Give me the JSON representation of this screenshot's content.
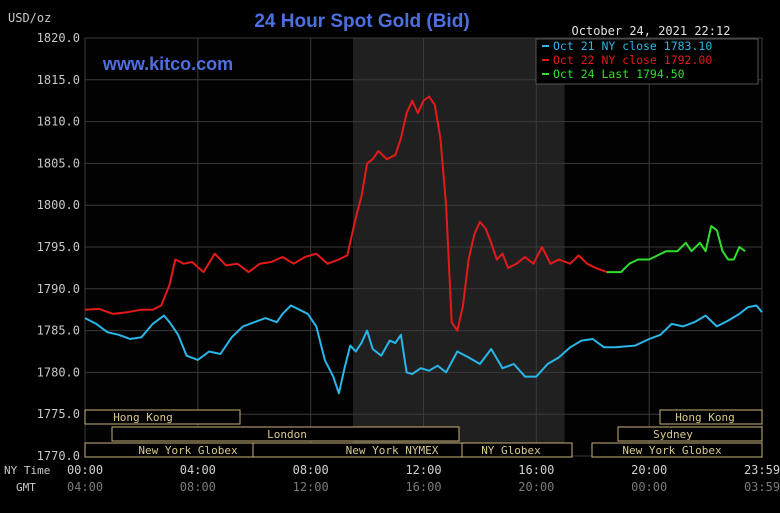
{
  "header": {
    "y_unit": "USD/oz",
    "title": "24 Hour Spot Gold (Bid)",
    "website": "www.kitco.com",
    "datetime": "October 24, 2021 22:12"
  },
  "legend": [
    {
      "label": "Oct 21 NY close 1783.10",
      "color": "#29b6e8"
    },
    {
      "label": "Oct 22 NY close 1792.00",
      "color": "#e41a1a"
    },
    {
      "label": "Oct 24 Last 1794.50",
      "color": "#2ee02e"
    }
  ],
  "x_axis": {
    "row_label_ny": "NY Time",
    "row_label_gmt": "GMT",
    "ny_ticks": [
      "00:00",
      "04:00",
      "08:00",
      "12:00",
      "16:00",
      "20:00",
      "23:59"
    ],
    "gmt_ticks": [
      "04:00",
      "08:00",
      "12:00",
      "16:00",
      "20:00",
      "00:00",
      "03:59"
    ]
  },
  "sessions": {
    "hong_kong_left": "Hong Kong",
    "london": "London",
    "ny_globex_left": "New York Globex",
    "ny_nymex": "New York NYMEX",
    "ny_globex_mid": "NY Globex",
    "hong_kong_right": "Hong Kong",
    "sydney": "Sydney",
    "ny_globex_right": "New York Globex"
  },
  "chart_data": {
    "type": "line",
    "title": "24 Hour Spot Gold (Bid)",
    "ylabel": "USD/oz",
    "xlabel": "NY Time",
    "x_unit": "hours (NY time)",
    "xlim": [
      0,
      24
    ],
    "ylim": [
      1770,
      1820
    ],
    "yticks": [
      "1770.0",
      "1775.0",
      "1780.0",
      "1785.0",
      "1790.0",
      "1795.0",
      "1800.0",
      "1805.0",
      "1810.0",
      "1815.0",
      "1820.0"
    ],
    "grid": true,
    "legend_position": "top-right",
    "shaded_region_hours": [
      9.5,
      17.0
    ],
    "series": [
      {
        "name": "Oct 21 NY close 1783.10",
        "color": "#29b6e8",
        "points": [
          [
            0.0,
            1786.5
          ],
          [
            0.4,
            1785.8
          ],
          [
            0.8,
            1784.8
          ],
          [
            1.2,
            1784.5
          ],
          [
            1.6,
            1784.0
          ],
          [
            2.0,
            1784.2
          ],
          [
            2.4,
            1785.8
          ],
          [
            2.8,
            1786.8
          ],
          [
            3.0,
            1786.0
          ],
          [
            3.3,
            1784.5
          ],
          [
            3.6,
            1782.0
          ],
          [
            4.0,
            1781.5
          ],
          [
            4.4,
            1782.5
          ],
          [
            4.8,
            1782.2
          ],
          [
            5.2,
            1784.2
          ],
          [
            5.6,
            1785.5
          ],
          [
            6.0,
            1786.0
          ],
          [
            6.4,
            1786.5
          ],
          [
            6.8,
            1786.0
          ],
          [
            7.0,
            1787.0
          ],
          [
            7.3,
            1788.0
          ],
          [
            7.6,
            1787.5
          ],
          [
            7.9,
            1787.0
          ],
          [
            8.2,
            1785.5
          ],
          [
            8.5,
            1781.5
          ],
          [
            8.8,
            1779.5
          ],
          [
            9.0,
            1777.5
          ],
          [
            9.2,
            1780.5
          ],
          [
            9.4,
            1783.2
          ],
          [
            9.6,
            1782.5
          ],
          [
            9.8,
            1783.5
          ],
          [
            10.0,
            1785.0
          ],
          [
            10.2,
            1782.8
          ],
          [
            10.5,
            1782.0
          ],
          [
            10.8,
            1783.8
          ],
          [
            11.0,
            1783.5
          ],
          [
            11.2,
            1784.5
          ],
          [
            11.4,
            1780.0
          ],
          [
            11.6,
            1779.8
          ],
          [
            11.9,
            1780.5
          ],
          [
            12.2,
            1780.2
          ],
          [
            12.5,
            1780.8
          ],
          [
            12.8,
            1780.0
          ],
          [
            13.2,
            1782.5
          ],
          [
            13.6,
            1781.8
          ],
          [
            14.0,
            1781.0
          ],
          [
            14.4,
            1782.8
          ],
          [
            14.8,
            1780.5
          ],
          [
            15.2,
            1781.0
          ],
          [
            15.6,
            1779.5
          ],
          [
            16.0,
            1779.5
          ],
          [
            16.4,
            1781.0
          ],
          [
            16.8,
            1781.8
          ],
          [
            17.2,
            1783.0
          ],
          [
            17.6,
            1783.8
          ],
          [
            18.0,
            1784.0
          ],
          [
            18.4,
            1783.0
          ],
          [
            18.8,
            1783.0
          ],
          [
            19.5,
            1783.2
          ],
          [
            20.0,
            1784.0
          ],
          [
            20.4,
            1784.5
          ],
          [
            20.8,
            1785.8
          ],
          [
            21.2,
            1785.5
          ],
          [
            21.6,
            1786.0
          ],
          [
            22.0,
            1786.8
          ],
          [
            22.4,
            1785.5
          ],
          [
            22.8,
            1786.2
          ],
          [
            23.2,
            1787.0
          ],
          [
            23.5,
            1787.8
          ],
          [
            23.8,
            1788.0
          ],
          [
            24.0,
            1787.2
          ]
        ]
      },
      {
        "name": "Oct 22 NY close 1792.00",
        "color": "#e41a1a",
        "points": [
          [
            0.0,
            1787.5
          ],
          [
            0.5,
            1787.6
          ],
          [
            1.0,
            1787.0
          ],
          [
            1.5,
            1787.2
          ],
          [
            2.0,
            1787.5
          ],
          [
            2.4,
            1787.5
          ],
          [
            2.7,
            1788.0
          ],
          [
            3.0,
            1790.5
          ],
          [
            3.2,
            1793.5
          ],
          [
            3.5,
            1793.0
          ],
          [
            3.8,
            1793.2
          ],
          [
            4.2,
            1792.0
          ],
          [
            4.6,
            1794.2
          ],
          [
            5.0,
            1792.8
          ],
          [
            5.4,
            1793.0
          ],
          [
            5.8,
            1792.0
          ],
          [
            6.2,
            1793.0
          ],
          [
            6.6,
            1793.2
          ],
          [
            7.0,
            1793.8
          ],
          [
            7.4,
            1793.0
          ],
          [
            7.8,
            1793.8
          ],
          [
            8.2,
            1794.2
          ],
          [
            8.6,
            1793.0
          ],
          [
            9.0,
            1793.5
          ],
          [
            9.3,
            1794.0
          ],
          [
            9.6,
            1798.5
          ],
          [
            9.8,
            1801.0
          ],
          [
            10.0,
            1805.0
          ],
          [
            10.2,
            1805.5
          ],
          [
            10.4,
            1806.5
          ],
          [
            10.7,
            1805.5
          ],
          [
            11.0,
            1806.0
          ],
          [
            11.2,
            1808.0
          ],
          [
            11.4,
            1811.0
          ],
          [
            11.6,
            1812.5
          ],
          [
            11.8,
            1811.0
          ],
          [
            12.0,
            1812.5
          ],
          [
            12.2,
            1813.0
          ],
          [
            12.4,
            1812.0
          ],
          [
            12.6,
            1808.0
          ],
          [
            12.8,
            1800.0
          ],
          [
            13.0,
            1786.0
          ],
          [
            13.2,
            1785.0
          ],
          [
            13.4,
            1788.0
          ],
          [
            13.6,
            1793.5
          ],
          [
            13.8,
            1796.5
          ],
          [
            14.0,
            1798.0
          ],
          [
            14.2,
            1797.2
          ],
          [
            14.4,
            1795.5
          ],
          [
            14.6,
            1793.5
          ],
          [
            14.8,
            1794.2
          ],
          [
            15.0,
            1792.5
          ],
          [
            15.3,
            1793.0
          ],
          [
            15.6,
            1793.8
          ],
          [
            15.9,
            1793.0
          ],
          [
            16.2,
            1795.0
          ],
          [
            16.5,
            1793.0
          ],
          [
            16.8,
            1793.5
          ],
          [
            17.2,
            1793.0
          ],
          [
            17.5,
            1794.0
          ],
          [
            17.8,
            1793.0
          ],
          [
            18.1,
            1792.5
          ],
          [
            18.5,
            1792.0
          ]
        ]
      },
      {
        "name": "Oct 24 Last 1794.50",
        "color": "#2ee02e",
        "points": [
          [
            18.5,
            1792.0
          ],
          [
            19.0,
            1792.0
          ],
          [
            19.3,
            1793.0
          ],
          [
            19.6,
            1793.5
          ],
          [
            20.0,
            1793.5
          ],
          [
            20.3,
            1794.0
          ],
          [
            20.6,
            1794.5
          ],
          [
            21.0,
            1794.5
          ],
          [
            21.3,
            1795.5
          ],
          [
            21.5,
            1794.5
          ],
          [
            21.8,
            1795.5
          ],
          [
            22.0,
            1794.5
          ],
          [
            22.2,
            1797.5
          ],
          [
            22.4,
            1797.0
          ],
          [
            22.6,
            1794.5
          ],
          [
            22.8,
            1793.5
          ],
          [
            23.0,
            1793.5
          ],
          [
            23.2,
            1795.0
          ],
          [
            23.4,
            1794.5
          ]
        ]
      }
    ]
  }
}
